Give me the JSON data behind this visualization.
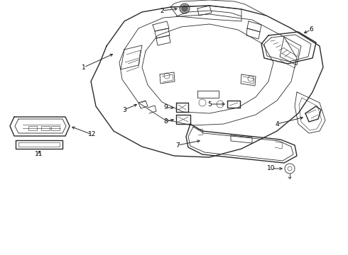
{
  "background": "#ffffff",
  "line_color": "#2a2a2a",
  "label_color": "#000000",
  "lw_main": 1.0,
  "lw_thin": 0.6,
  "lw_detail": 0.4
}
